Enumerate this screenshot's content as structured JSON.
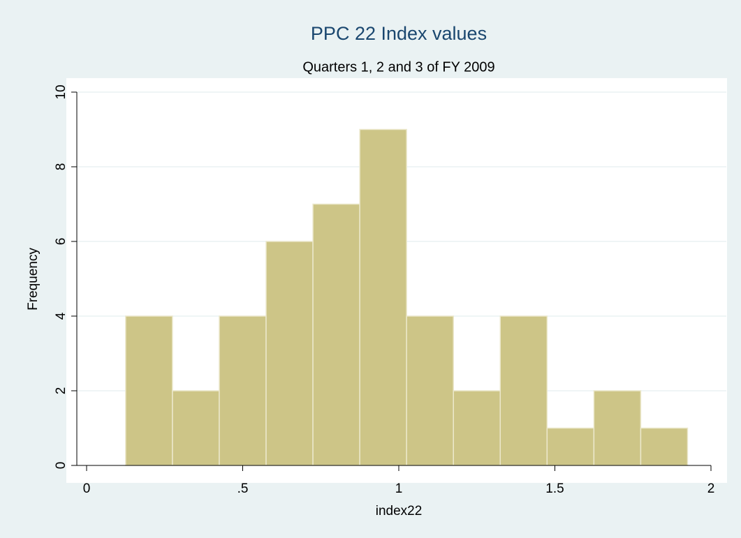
{
  "chart_data": {
    "type": "histogram",
    "title": "PPC 22 Index values",
    "subtitle": "Quarters 1, 2 and 3 of FY 2009",
    "x_label": "index22",
    "y_label": "Frequency",
    "bins": [
      0.125,
      0.275,
      0.425,
      0.575,
      0.725,
      0.875,
      1.025,
      1.175,
      1.325,
      1.475,
      1.625,
      1.775,
      1.925
    ],
    "values": [
      4,
      2,
      4,
      6,
      7,
      9,
      4,
      2,
      4,
      1,
      2,
      1
    ],
    "color": "#cdc587",
    "xlim": [
      0,
      2
    ],
    "xticks": [
      0,
      {
        "value": 0.5,
        "label": ".5"
      },
      1,
      1.5,
      2
    ],
    "ylim": [
      0,
      10
    ],
    "yticks": [
      0,
      2,
      4,
      6,
      8,
      10
    ],
    "grid": true
  }
}
